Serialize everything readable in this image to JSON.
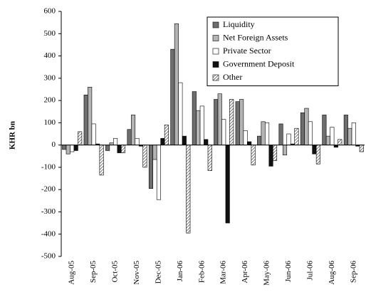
{
  "chart_data": {
    "type": "bar",
    "y_label": "KHR bn",
    "categories": [
      "Aug-05",
      "Sep-05",
      "Oct-05",
      "Nov-05",
      "Dec-05",
      "Jan-06",
      "Feb-06",
      "Mar-06",
      "Apr-06",
      "May-06",
      "Jun-06",
      "Jul-06",
      "Aug-06",
      "Sep-06"
    ],
    "series": [
      {
        "name": "Liquidity",
        "color": "#6e6e6e",
        "values": [
          -20,
          225,
          -25,
          70,
          -195,
          430,
          240,
          205,
          195,
          40,
          95,
          145,
          135,
          135
        ]
      },
      {
        "name": "Net Foreign Assets",
        "color": "#b4b4b4",
        "values": [
          -40,
          260,
          10,
          135,
          -65,
          545,
          155,
          230,
          205,
          105,
          -45,
          165,
          40,
          75
        ]
      },
      {
        "name": "Private Sector",
        "color": "#ffffff",
        "values": [
          -30,
          95,
          30,
          30,
          -245,
          280,
          175,
          115,
          65,
          100,
          50,
          105,
          80,
          100
        ]
      },
      {
        "name": "Government Deposit",
        "color": "#111111",
        "values": [
          -25,
          5,
          -35,
          -5,
          30,
          40,
          25,
          -350,
          15,
          -95,
          5,
          -40,
          -10,
          -5
        ]
      },
      {
        "name": "Other",
        "color": "#555555",
        "pattern": "hatch",
        "values": [
          60,
          -135,
          -35,
          -100,
          90,
          -395,
          -115,
          205,
          -90,
          -70,
          75,
          -85,
          25,
          -30
        ]
      }
    ],
    "ylim": [
      -500,
      600
    ],
    "yticks": [
      -500,
      -400,
      -300,
      -200,
      -100,
      0,
      100,
      200,
      300,
      400,
      500,
      600
    ],
    "grid": false
  }
}
